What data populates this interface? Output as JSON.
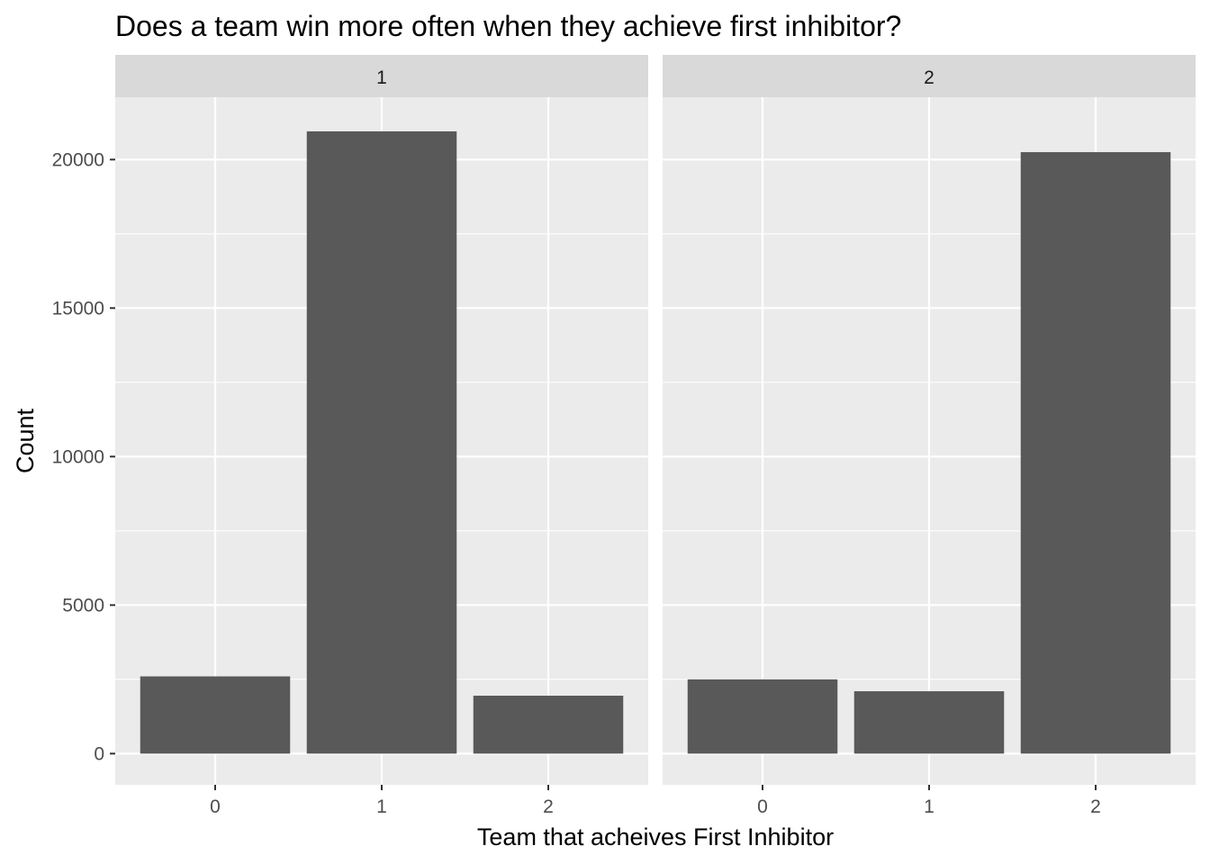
{
  "chart_data": {
    "type": "bar",
    "title": "Does a team win more often when they achieve first inhibitor?",
    "xlabel": "Team that acheives First Inhibitor",
    "ylabel": "Count",
    "ylim": [
      -1050,
      22100
    ],
    "yticks": [
      0,
      5000,
      10000,
      15000,
      20000
    ],
    "categories": [
      "0",
      "1",
      "2"
    ],
    "grid": true,
    "colors": {
      "bar": "#595959",
      "panel": "#ebebeb",
      "strip": "#d9d9d9",
      "grid": "#ffffff"
    },
    "facets": [
      {
        "label": "1",
        "values": [
          2600,
          20950,
          1950
        ]
      },
      {
        "label": "2",
        "values": [
          2500,
          2100,
          20250
        ]
      }
    ]
  }
}
